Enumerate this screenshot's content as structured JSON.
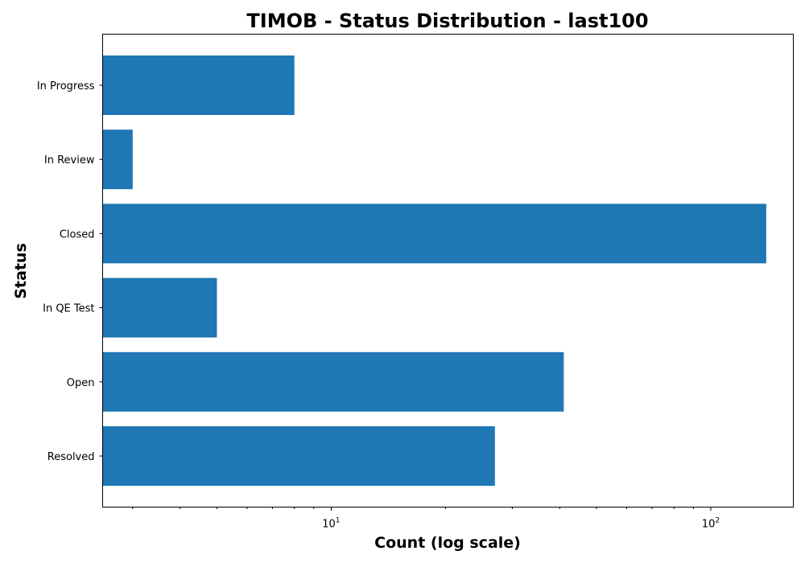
{
  "chart_data": {
    "type": "bar",
    "orientation": "horizontal",
    "title": "TIMOB - Status Distribution - last100",
    "xlabel": "Count (log scale)",
    "ylabel": "Status",
    "xscale": "log",
    "xlim": [
      2.5,
      165
    ],
    "categories": [
      "In Progress",
      "In Review",
      "Closed",
      "In QE Test",
      "Open",
      "Resolved"
    ],
    "values": [
      8,
      3,
      140,
      5,
      41,
      27
    ],
    "x_ticks": [
      {
        "value": 10,
        "base": "10",
        "exp": "1"
      },
      {
        "value": 100,
        "base": "10",
        "exp": "2"
      }
    ],
    "bar_color": "#1f77b4",
    "grid": false,
    "legend": "none"
  }
}
